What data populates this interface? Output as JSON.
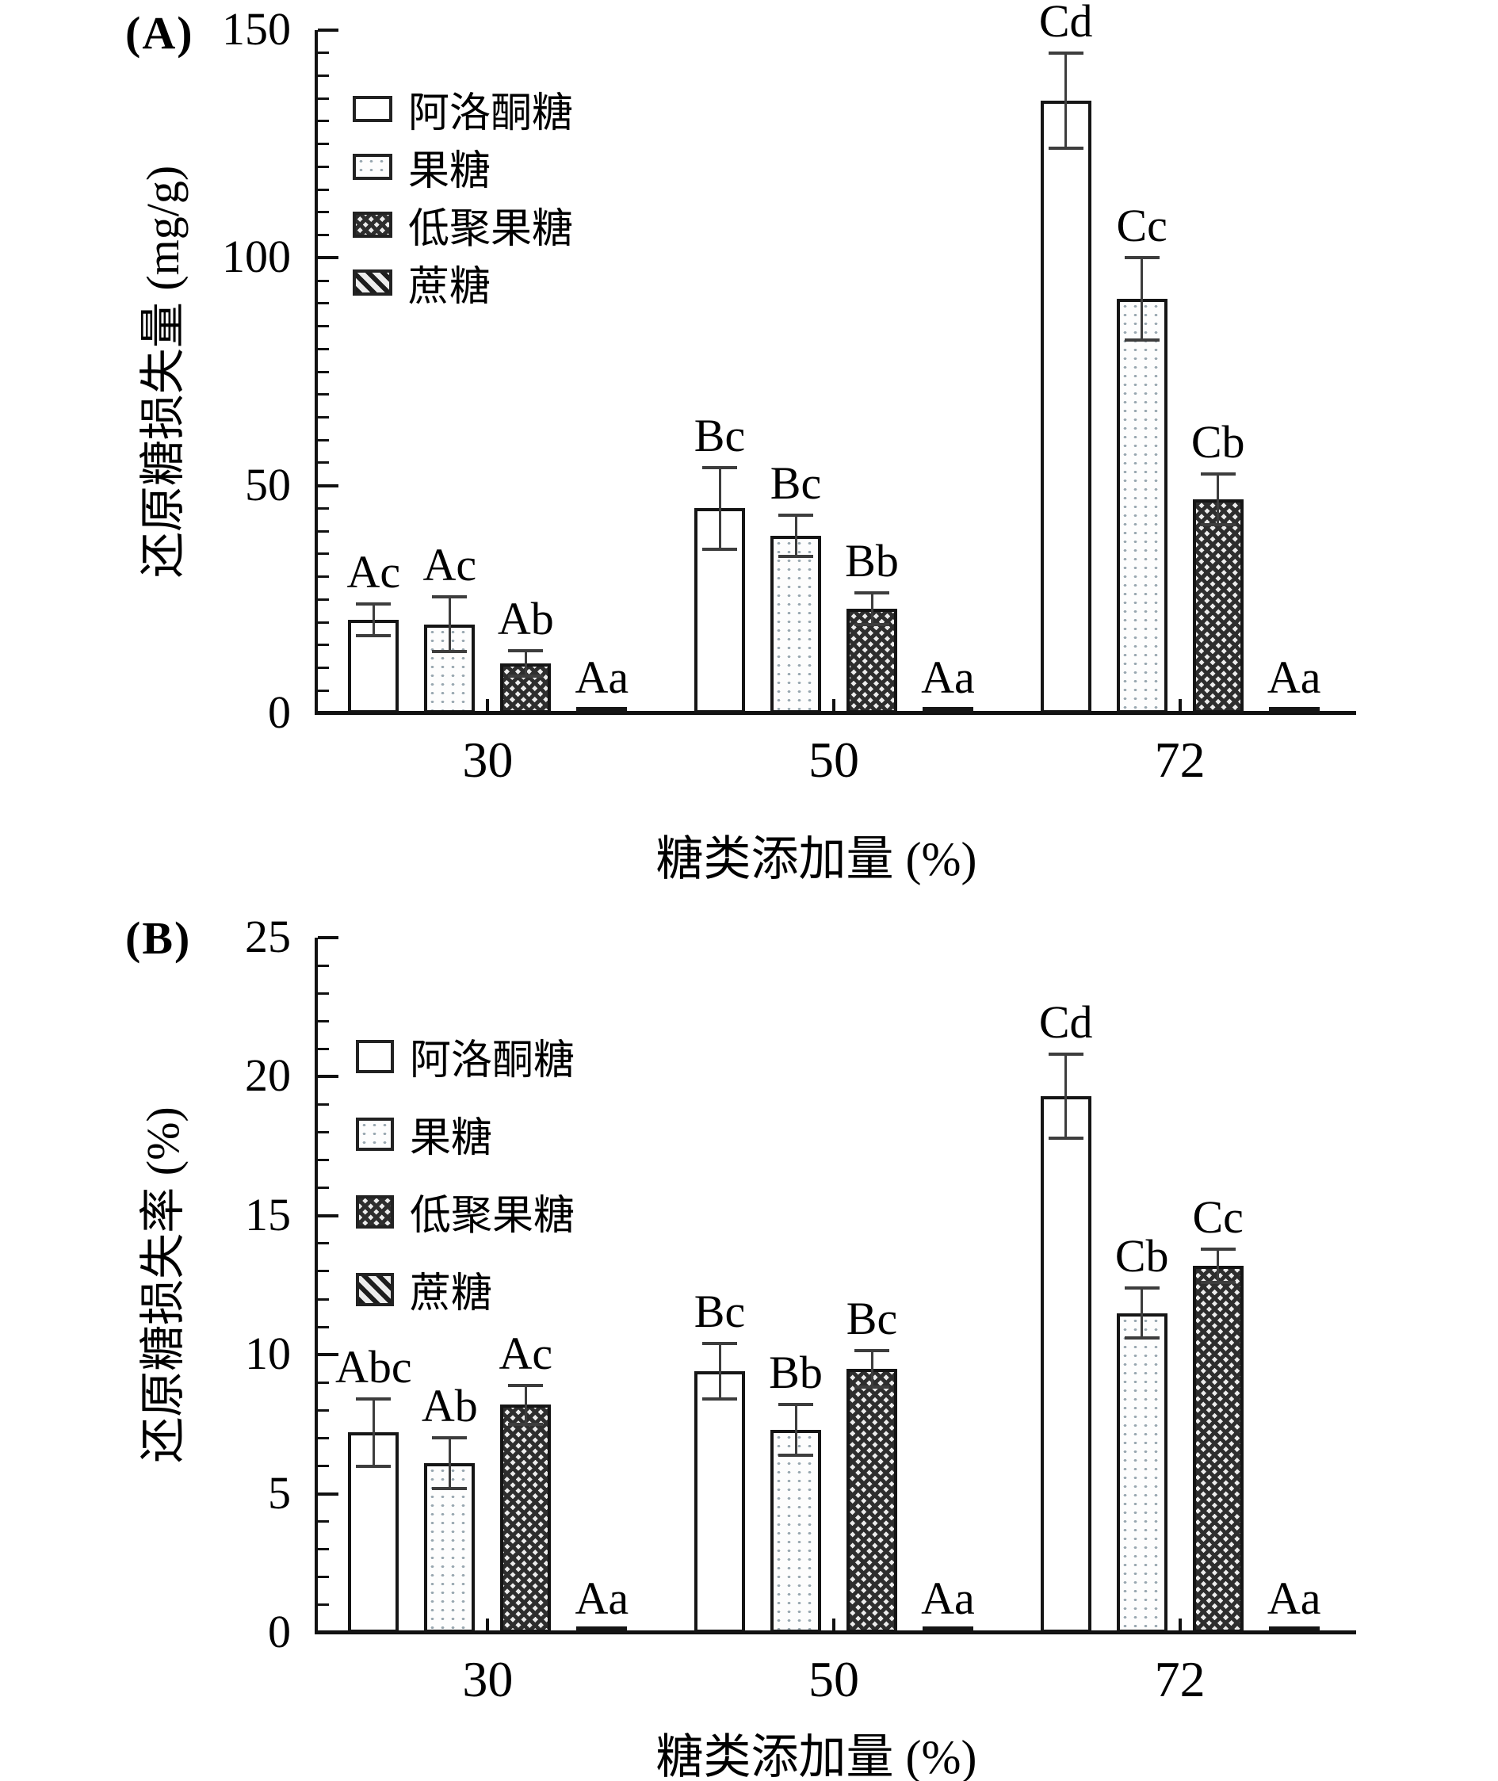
{
  "figure": {
    "background": "#ffffff"
  },
  "colors": {
    "stroke": "#151515",
    "error_bar": "#3d3d3d",
    "text": "#000000"
  },
  "chart_data": [
    {
      "panel": "A",
      "type": "bar",
      "title_letter": "(A)",
      "ylabel": "还原糖损失量 (mg/g)",
      "xlabel": "糖类添加量 (%)",
      "categories": [
        "30",
        "50",
        "72"
      ],
      "ylim": [
        0,
        150
      ],
      "ytick_major": 50,
      "ytick_minor": 5,
      "ytick_labels": [
        "0",
        "50",
        "100",
        "150"
      ],
      "grid": false,
      "legend_position": "top-left-inside",
      "series": [
        {
          "name": "阿洛酮糖",
          "pattern": "white",
          "values": [
            20.5,
            45,
            134.5
          ],
          "errors": [
            3.5,
            9,
            10.5
          ],
          "sig_labels": [
            "Ac",
            "Bc",
            "Cd"
          ]
        },
        {
          "name": "果糖",
          "pattern": "dots",
          "values": [
            19.5,
            39,
            91
          ],
          "errors": [
            6,
            4.5,
            9
          ],
          "sig_labels": [
            "Ac",
            "Bc",
            "Cc"
          ]
        },
        {
          "name": "低聚果糖",
          "pattern": "checker",
          "values": [
            11,
            23,
            47
          ],
          "errors": [
            2.8,
            3.5,
            5.5
          ],
          "sig_labels": [
            "Ab",
            "Bb",
            "Cb"
          ]
        },
        {
          "name": "蔗糖",
          "pattern": "diagonal",
          "values": [
            0.8,
            0.8,
            0.8
          ],
          "errors": [
            0,
            0,
            0
          ],
          "sig_labels": [
            "Aa",
            "Aa",
            "Aa"
          ]
        }
      ]
    },
    {
      "panel": "B",
      "type": "bar",
      "title_letter": "(B)",
      "ylabel": "还原糖损失率 (%)",
      "xlabel": "糖类添加量 (%)",
      "categories": [
        "30",
        "50",
        "72"
      ],
      "ylim": [
        0,
        25
      ],
      "ytick_major": 5,
      "ytick_minor": 1,
      "ytick_labels": [
        "0",
        "5",
        "10",
        "15",
        "20",
        "25"
      ],
      "grid": false,
      "legend_position": "top-left-inside",
      "series": [
        {
          "name": "阿洛酮糖",
          "pattern": "white",
          "values": [
            7.2,
            9.4,
            19.3
          ],
          "errors": [
            1.2,
            1.0,
            1.5
          ],
          "sig_labels": [
            "Abc",
            "Bc",
            "Cd"
          ]
        },
        {
          "name": "果糖",
          "pattern": "dots",
          "values": [
            6.1,
            7.3,
            11.5
          ],
          "errors": [
            0.9,
            0.9,
            0.9
          ],
          "sig_labels": [
            "Ab",
            "Bb",
            "Cb"
          ]
        },
        {
          "name": "低聚果糖",
          "pattern": "checker",
          "values": [
            8.2,
            9.5,
            13.2
          ],
          "errors": [
            0.7,
            0.65,
            0.6
          ],
          "sig_labels": [
            "Ac",
            "Bc",
            "Cc"
          ]
        },
        {
          "name": "蔗糖",
          "pattern": "diagonal",
          "values": [
            0.1,
            0.1,
            0.1
          ],
          "errors": [
            0,
            0,
            0
          ],
          "sig_labels": [
            "Aa",
            "Aa",
            "Aa"
          ]
        }
      ]
    }
  ]
}
